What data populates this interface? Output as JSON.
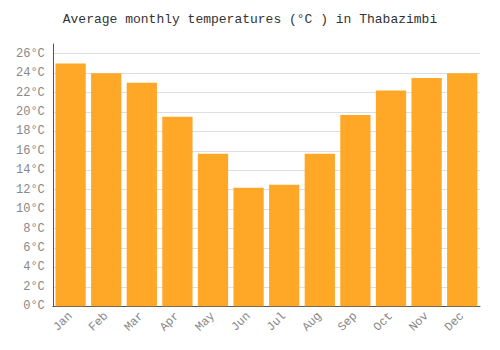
{
  "chart_data": {
    "type": "bar",
    "title": "Average monthly temperatures (°C ) in Thabazimbi",
    "categories": [
      "Jan",
      "Feb",
      "Mar",
      "Apr",
      "May",
      "Jun",
      "Jul",
      "Aug",
      "Sep",
      "Oct",
      "Nov",
      "Dec"
    ],
    "values": [
      25.0,
      24.0,
      23.0,
      19.5,
      15.7,
      12.2,
      12.5,
      15.7,
      19.7,
      22.2,
      23.5,
      24.0
    ],
    "color": "#FFA726",
    "ylim": [
      0,
      27
    ],
    "yticks": [
      {
        "value": 0,
        "label": "0°C"
      },
      {
        "value": 2,
        "label": "2°C"
      },
      {
        "value": 4,
        "label": "4°C"
      },
      {
        "value": 6,
        "label": "6°C"
      },
      {
        "value": 8,
        "label": "8°C"
      },
      {
        "value": 10,
        "label": "10°C"
      },
      {
        "value": 12,
        "label": "12°C"
      },
      {
        "value": 14,
        "label": "14°C"
      },
      {
        "value": 16,
        "label": "16°C"
      },
      {
        "value": 18,
        "label": "18°C"
      },
      {
        "value": 20,
        "label": "20°C"
      },
      {
        "value": 22,
        "label": "22°C"
      },
      {
        "value": 24,
        "label": "24°C"
      },
      {
        "value": 26,
        "label": "26°C"
      }
    ],
    "grid": true
  }
}
